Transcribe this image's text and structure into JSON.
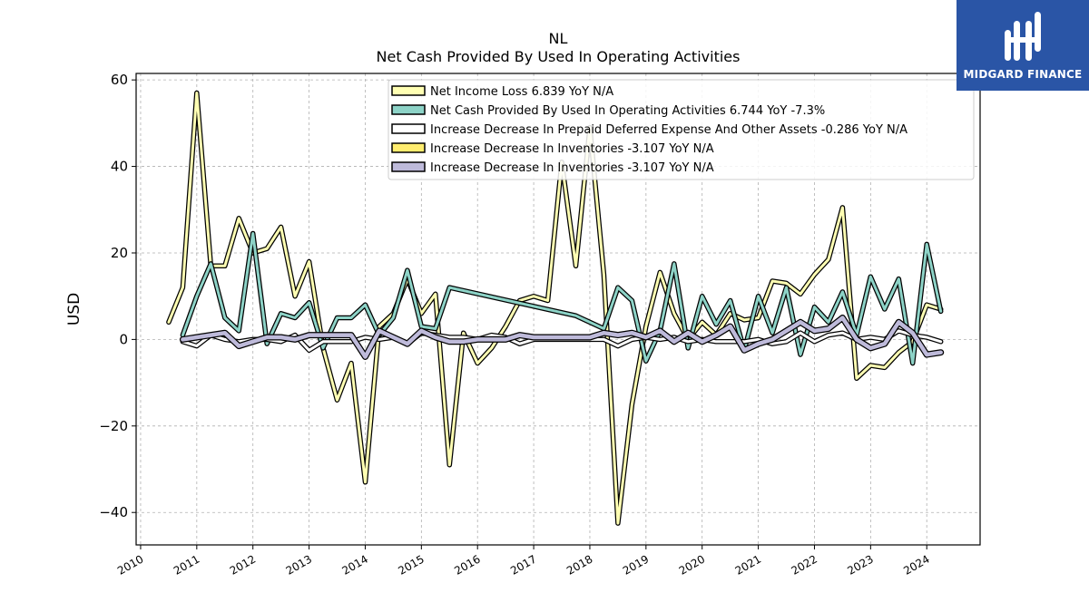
{
  "brand": {
    "name": "MIDGARD FINANCE",
    "color": "#2a55a6",
    "icon": "midgard-logo-icon"
  },
  "chart_data": {
    "type": "line",
    "title": "NL",
    "subtitle": "Net Cash Provided By Used In Operating Activities",
    "ylabel": "USD",
    "xlabel": "",
    "ylim": [
      -47.5,
      61.5
    ],
    "xlim": [
      2009.92,
      2024.95
    ],
    "yticks": [
      -40,
      -20,
      0,
      20,
      40,
      60
    ],
    "ytick_labels": [
      "−40",
      "−20",
      "0",
      "20",
      "40",
      "60"
    ],
    "xticks": [
      2010,
      2011,
      2012,
      2013,
      2014,
      2015,
      2016,
      2017,
      2018,
      2019,
      2020,
      2021,
      2022,
      2023,
      2024
    ],
    "xtick_labels": [
      "2010",
      "2011",
      "2012",
      "2013",
      "2014",
      "2015",
      "2016",
      "2017",
      "2018",
      "2019",
      "2020",
      "2021",
      "2022",
      "2023",
      "2024"
    ],
    "grid": true,
    "legend_position": "top-right",
    "series": [
      {
        "name": "Net Income Loss  6.839 YoY N/A",
        "color": "#ffffb3",
        "points": [
          [
            2010.5,
            4
          ],
          [
            2010.75,
            12
          ],
          [
            2011.0,
            57
          ],
          [
            2011.25,
            17
          ],
          [
            2011.5,
            17
          ],
          [
            2011.75,
            28
          ],
          [
            2012.0,
            20
          ],
          [
            2012.25,
            21
          ],
          [
            2012.5,
            26
          ],
          [
            2012.75,
            10
          ],
          [
            2013.0,
            18
          ],
          [
            2013.25,
            -2
          ],
          [
            2013.5,
            -14
          ],
          [
            2013.75,
            -5.5
          ],
          [
            2014.0,
            -33
          ],
          [
            2014.25,
            3
          ],
          [
            2014.5,
            6
          ],
          [
            2014.75,
            14
          ],
          [
            2015.0,
            6
          ],
          [
            2015.25,
            10.5
          ],
          [
            2015.5,
            -29
          ],
          [
            2015.75,
            1.5
          ],
          [
            2016.0,
            -5.5
          ],
          [
            2016.25,
            -2
          ],
          [
            2016.5,
            3
          ],
          [
            2016.75,
            9
          ],
          [
            2017.0,
            10
          ],
          [
            2017.25,
            9
          ],
          [
            2017.5,
            41
          ],
          [
            2017.75,
            17
          ],
          [
            2018.0,
            49
          ],
          [
            2018.25,
            15
          ],
          [
            2018.5,
            -42.5
          ],
          [
            2018.75,
            -15
          ],
          [
            2019.0,
            3
          ],
          [
            2019.25,
            15.5
          ],
          [
            2019.5,
            6
          ],
          [
            2019.75,
            0
          ],
          [
            2020.0,
            4
          ],
          [
            2020.25,
            1
          ],
          [
            2020.5,
            6
          ],
          [
            2020.75,
            4.5
          ],
          [
            2021.0,
            5
          ],
          [
            2021.25,
            13.5
          ],
          [
            2021.5,
            13
          ],
          [
            2021.75,
            10.5
          ],
          [
            2022.0,
            15
          ],
          [
            2022.25,
            18.5
          ],
          [
            2022.5,
            30.5
          ],
          [
            2022.75,
            -9
          ],
          [
            2023.0,
            -6
          ],
          [
            2023.25,
            -6.5
          ],
          [
            2023.5,
            -3
          ],
          [
            2023.75,
            -0.5
          ],
          [
            2024.0,
            8
          ],
          [
            2024.25,
            7
          ]
        ]
      },
      {
        "name": "Net Cash Provided By Used In Operating Activities  6.744 YoY -7.3%",
        "color": "#8dd3c7",
        "points": [
          [
            2010.75,
            1
          ],
          [
            2011.0,
            10
          ],
          [
            2011.25,
            17.5
          ],
          [
            2011.5,
            5
          ],
          [
            2011.75,
            2
          ],
          [
            2012.0,
            24.5
          ],
          [
            2012.25,
            -1
          ],
          [
            2012.5,
            6
          ],
          [
            2012.75,
            5
          ],
          [
            2013.0,
            8.5
          ],
          [
            2013.25,
            -2
          ],
          [
            2013.5,
            5
          ],
          [
            2013.75,
            5
          ],
          [
            2014.0,
            8
          ],
          [
            2014.25,
            1
          ],
          [
            2014.5,
            5
          ],
          [
            2014.75,
            16
          ],
          [
            2015.0,
            3
          ],
          [
            2015.25,
            2.5
          ],
          [
            2015.5,
            12
          ],
          [
            2017.75,
            5.5
          ],
          [
            2018.25,
            2.5
          ],
          [
            2018.5,
            12
          ],
          [
            2018.75,
            9
          ],
          [
            2019.0,
            -5
          ],
          [
            2019.25,
            2
          ],
          [
            2019.5,
            17.5
          ],
          [
            2019.75,
            -2
          ],
          [
            2020.0,
            10
          ],
          [
            2020.25,
            3.5
          ],
          [
            2020.5,
            9
          ],
          [
            2020.75,
            -2.5
          ],
          [
            2021.0,
            10
          ],
          [
            2021.25,
            1.5
          ],
          [
            2021.5,
            12
          ],
          [
            2021.75,
            -3.5
          ],
          [
            2022.0,
            7.5
          ],
          [
            2022.25,
            4
          ],
          [
            2022.5,
            11
          ],
          [
            2022.75,
            1
          ],
          [
            2023.0,
            14.5
          ],
          [
            2023.25,
            7
          ],
          [
            2023.5,
            14
          ],
          [
            2023.75,
            -5.5
          ],
          [
            2024.0,
            22
          ],
          [
            2024.25,
            6.5
          ]
        ]
      },
      {
        "name": "Increase Decrease In Prepaid Deferred Expense And Other Assets  -0.286 YoY N/A",
        "color": "#ffffff",
        "points": [
          [
            2010.75,
            -0.5
          ],
          [
            2011.0,
            -1.5
          ],
          [
            2011.25,
            1
          ],
          [
            2011.5,
            0
          ],
          [
            2011.75,
            -0.5
          ],
          [
            2012.0,
            0
          ],
          [
            2012.25,
            0
          ],
          [
            2012.5,
            -0.5
          ],
          [
            2012.75,
            1
          ],
          [
            2013.0,
            -2.5
          ],
          [
            2013.25,
            -0.5
          ],
          [
            2013.5,
            -0.5
          ],
          [
            2013.75,
            -0.5
          ],
          [
            2014.0,
            0.5
          ],
          [
            2014.25,
            0
          ],
          [
            2014.5,
            0.5
          ],
          [
            2014.75,
            -1
          ],
          [
            2015.0,
            1.5
          ],
          [
            2015.25,
            1
          ],
          [
            2015.5,
            0.5
          ],
          [
            2015.75,
            0.5
          ],
          [
            2016.0,
            0
          ],
          [
            2016.25,
            1
          ],
          [
            2016.5,
            0.5
          ],
          [
            2016.75,
            -1
          ],
          [
            2017.0,
            0
          ],
          [
            2017.25,
            0
          ],
          [
            2017.5,
            0
          ],
          [
            2017.75,
            0
          ],
          [
            2018.0,
            0
          ],
          [
            2018.25,
            0
          ],
          [
            2018.5,
            -1.5
          ],
          [
            2018.75,
            0
          ],
          [
            2019.0,
            0.5
          ],
          [
            2019.25,
            0
          ],
          [
            2019.5,
            0.5
          ],
          [
            2019.75,
            -0.5
          ],
          [
            2020.0,
            0
          ],
          [
            2020.25,
            -0.5
          ],
          [
            2020.5,
            -0.5
          ],
          [
            2020.75,
            -0.5
          ],
          [
            2021.0,
            0
          ],
          [
            2021.25,
            -1
          ],
          [
            2021.5,
            -0.5
          ],
          [
            2021.75,
            1.5
          ],
          [
            2022.0,
            -0.5
          ],
          [
            2022.25,
            1
          ],
          [
            2022.5,
            1.5
          ],
          [
            2022.75,
            0
          ],
          [
            2023.0,
            0.5
          ],
          [
            2023.25,
            0
          ],
          [
            2023.5,
            2
          ],
          [
            2023.75,
            1
          ],
          [
            2024.0,
            0.5
          ],
          [
            2024.25,
            -0.5
          ]
        ]
      },
      {
        "name": "Increase Decrease In Inventories  -3.107 YoY N/A",
        "color": "#ffed6f",
        "points": [
          [
            2010.75,
            0
          ],
          [
            2011.0,
            0.5
          ],
          [
            2011.25,
            1
          ],
          [
            2011.5,
            1.5
          ],
          [
            2011.75,
            -1.5
          ],
          [
            2012.0,
            -0.5
          ],
          [
            2012.25,
            0.5
          ],
          [
            2012.5,
            0.5
          ],
          [
            2012.75,
            0
          ],
          [
            2013.0,
            1
          ],
          [
            2013.25,
            1
          ],
          [
            2013.5,
            1
          ],
          [
            2013.75,
            1
          ],
          [
            2014.0,
            -4
          ],
          [
            2014.25,
            2
          ],
          [
            2014.5,
            0.5
          ],
          [
            2014.75,
            -1
          ],
          [
            2015.0,
            2
          ],
          [
            2015.25,
            0.5
          ],
          [
            2015.5,
            -0.5
          ],
          [
            2015.75,
            -0.5
          ],
          [
            2016.0,
            0
          ],
          [
            2016.25,
            0
          ],
          [
            2016.5,
            0
          ],
          [
            2016.75,
            1
          ],
          [
            2017.0,
            0.5
          ],
          [
            2017.25,
            0.5
          ],
          [
            2017.5,
            0.5
          ],
          [
            2017.75,
            0.5
          ],
          [
            2018.0,
            0.5
          ],
          [
            2018.25,
            1.5
          ],
          [
            2018.5,
            1
          ],
          [
            2018.75,
            1.5
          ],
          [
            2019.0,
            0.5
          ],
          [
            2019.25,
            2
          ],
          [
            2019.5,
            -0.5
          ],
          [
            2019.75,
            1.5
          ],
          [
            2020.0,
            -0.5
          ],
          [
            2020.25,
            1
          ],
          [
            2020.5,
            3
          ],
          [
            2020.75,
            -2.5
          ],
          [
            2021.0,
            -1
          ],
          [
            2021.25,
            0
          ],
          [
            2021.5,
            2
          ],
          [
            2021.75,
            4
          ],
          [
            2022.0,
            2
          ],
          [
            2022.25,
            2.5
          ],
          [
            2022.5,
            5
          ],
          [
            2022.75,
            0
          ],
          [
            2023.0,
            -2
          ],
          [
            2023.25,
            -1
          ],
          [
            2023.5,
            4
          ],
          [
            2023.75,
            1.5
          ],
          [
            2024.0,
            -3.5
          ],
          [
            2024.25,
            -3
          ]
        ]
      },
      {
        "name": "Increase Decrease In Inventories  -3.107 YoY N/A",
        "color": "#bebada",
        "points": [
          [
            2010.75,
            0
          ],
          [
            2011.0,
            0.5
          ],
          [
            2011.25,
            1
          ],
          [
            2011.5,
            1.5
          ],
          [
            2011.75,
            -1.5
          ],
          [
            2012.0,
            -0.5
          ],
          [
            2012.25,
            0.5
          ],
          [
            2012.5,
            0.5
          ],
          [
            2012.75,
            0
          ],
          [
            2013.0,
            1
          ],
          [
            2013.25,
            1
          ],
          [
            2013.5,
            1
          ],
          [
            2013.75,
            1
          ],
          [
            2014.0,
            -4
          ],
          [
            2014.25,
            2
          ],
          [
            2014.5,
            0.5
          ],
          [
            2014.75,
            -1
          ],
          [
            2015.0,
            2
          ],
          [
            2015.25,
            0.5
          ],
          [
            2015.5,
            -0.5
          ],
          [
            2015.75,
            -0.5
          ],
          [
            2016.0,
            0
          ],
          [
            2016.25,
            0
          ],
          [
            2016.5,
            0
          ],
          [
            2016.75,
            1
          ],
          [
            2017.0,
            0.5
          ],
          [
            2017.25,
            0.5
          ],
          [
            2017.5,
            0.5
          ],
          [
            2017.75,
            0.5
          ],
          [
            2018.0,
            0.5
          ],
          [
            2018.25,
            1.5
          ],
          [
            2018.5,
            1
          ],
          [
            2018.75,
            1.5
          ],
          [
            2019.0,
            0.5
          ],
          [
            2019.25,
            2
          ],
          [
            2019.5,
            -0.5
          ],
          [
            2019.75,
            1.5
          ],
          [
            2020.0,
            -0.5
          ],
          [
            2020.25,
            1
          ],
          [
            2020.5,
            3
          ],
          [
            2020.75,
            -2.5
          ],
          [
            2021.0,
            -1
          ],
          [
            2021.25,
            0
          ],
          [
            2021.5,
            2
          ],
          [
            2021.75,
            4
          ],
          [
            2022.0,
            2
          ],
          [
            2022.25,
            2.5
          ],
          [
            2022.5,
            5
          ],
          [
            2022.75,
            0
          ],
          [
            2023.0,
            -2
          ],
          [
            2023.25,
            -1
          ],
          [
            2023.5,
            4
          ],
          [
            2023.75,
            1.5
          ],
          [
            2024.0,
            -3.5
          ],
          [
            2024.25,
            -3
          ]
        ]
      }
    ]
  }
}
